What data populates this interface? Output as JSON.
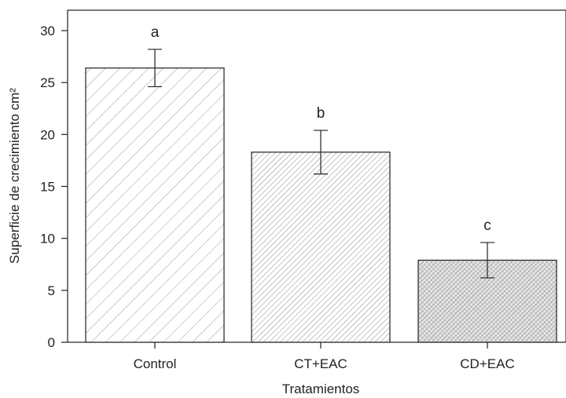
{
  "chart_data": {
    "type": "bar",
    "title": "",
    "xlabel": "Tratamientos",
    "ylabel": "Superficie de crecimiento cm²",
    "ylim": [
      0,
      32
    ],
    "yticks": [
      0,
      5,
      10,
      15,
      20,
      25,
      30
    ],
    "ytick_labels": [
      "0",
      "5",
      "10",
      "15",
      "20",
      "25",
      "30"
    ],
    "grid": false,
    "categories": [
      "Control",
      "CT+EAC",
      "CD+EAC"
    ],
    "values": [
      26.4,
      18.3,
      7.9
    ],
    "error": [
      1.8,
      2.1,
      1.7
    ],
    "significance_labels": [
      "a",
      "b",
      "c"
    ],
    "hatch": [
      "wide-diagonal",
      "dense-diagonal",
      "cross-hatch"
    ]
  }
}
